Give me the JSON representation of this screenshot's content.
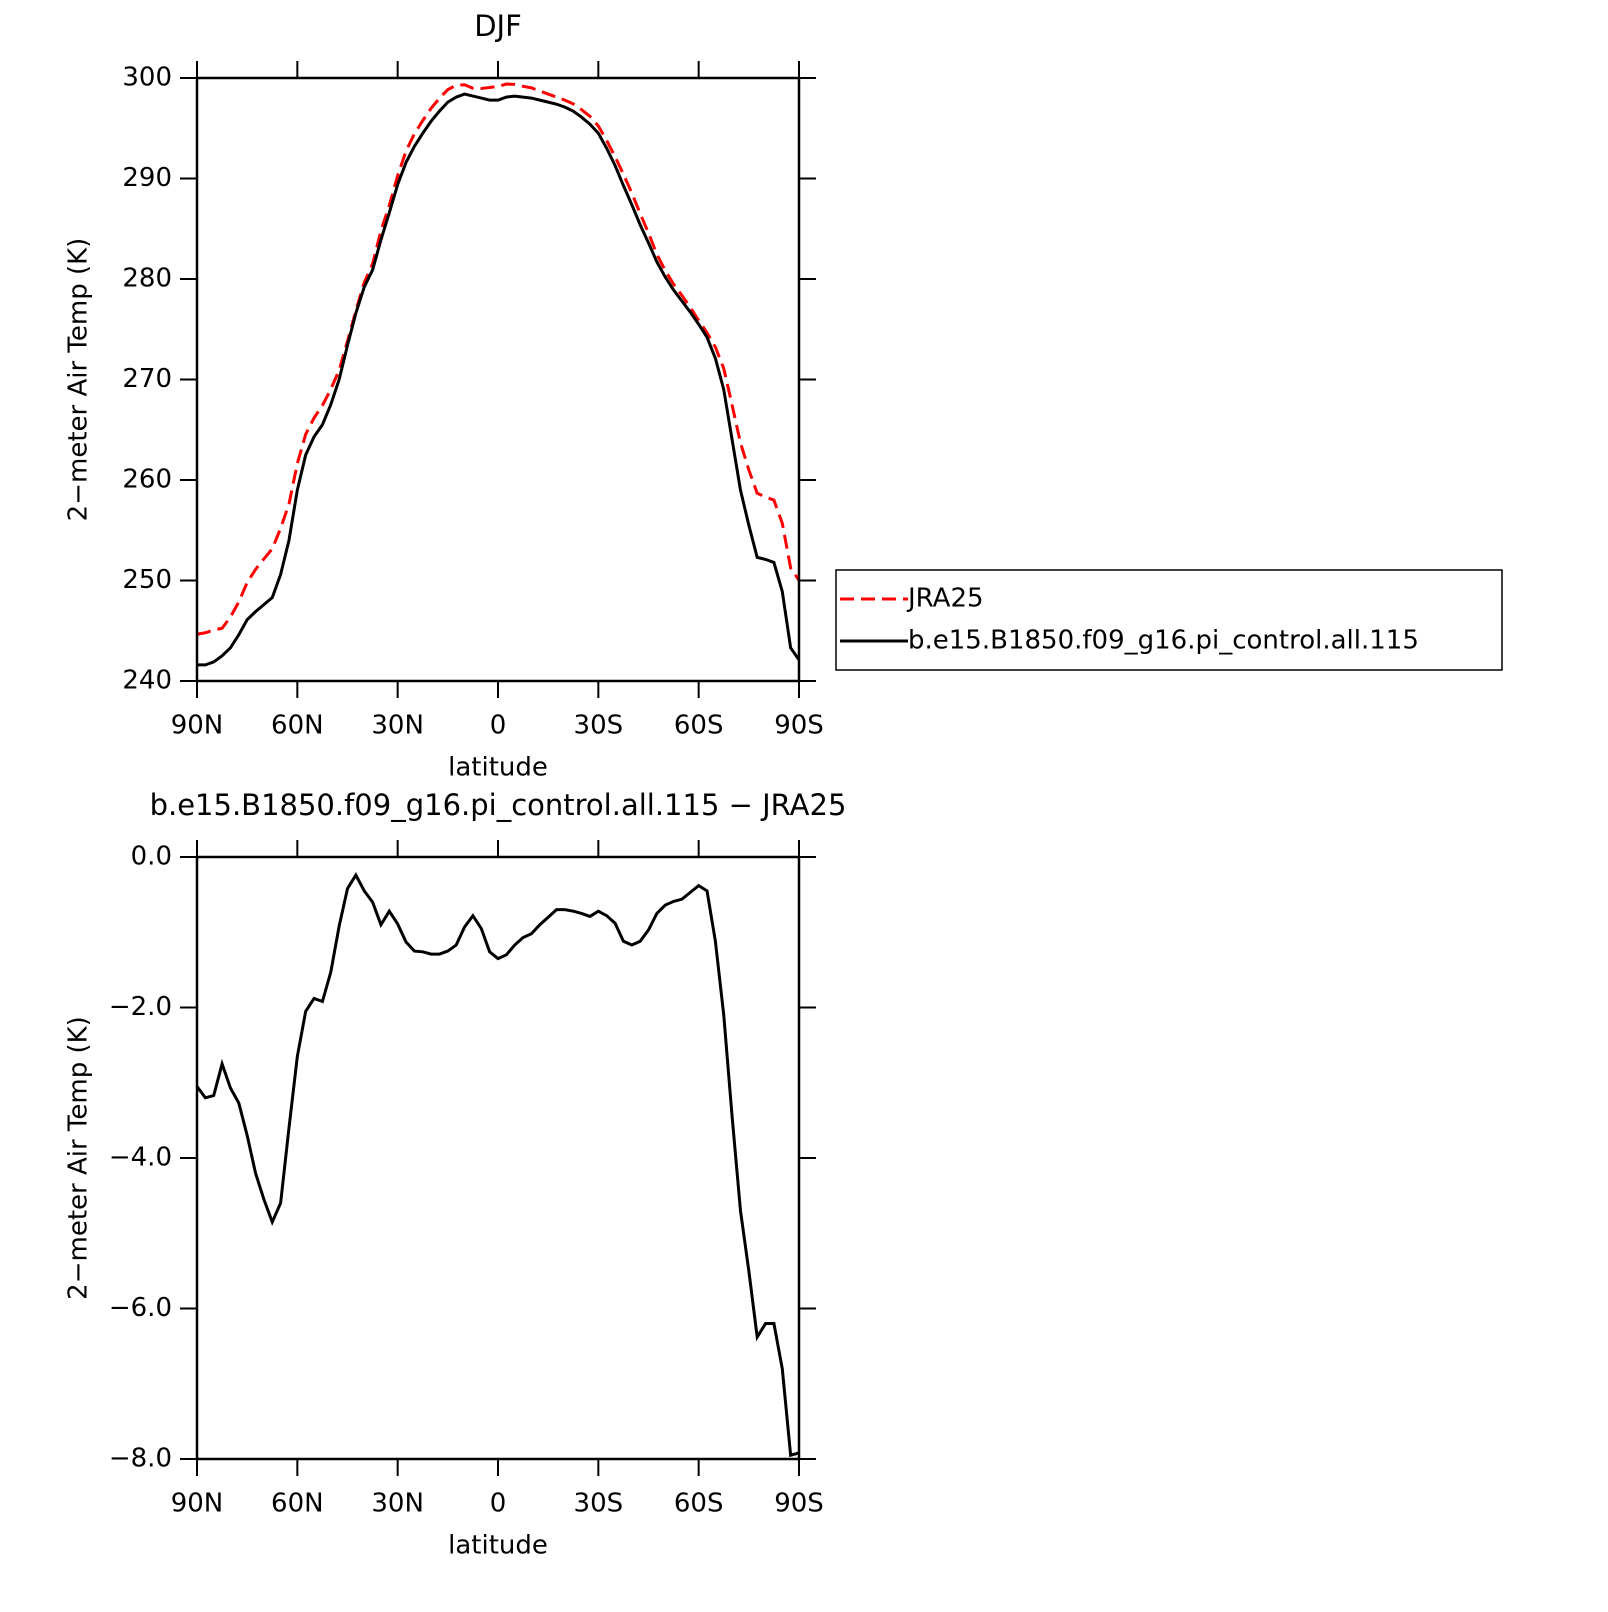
{
  "chart_data": [
    {
      "type": "line",
      "title": "DJF",
      "xlabel": "latitude",
      "ylabel": "2−meter Air Temp (K)",
      "x": [
        90,
        87.5,
        85,
        82.5,
        80,
        77.5,
        75,
        72.5,
        70,
        67.5,
        65,
        62.5,
        60,
        57.5,
        55,
        52.5,
        50,
        47.5,
        45,
        42.5,
        40,
        37.5,
        35,
        32.5,
        30,
        27.5,
        25,
        22.5,
        20,
        17.5,
        15,
        12.5,
        10,
        7.5,
        5,
        2.5,
        0,
        -2.5,
        -5,
        -7.5,
        -10,
        -12.5,
        -15,
        -17.5,
        -20,
        -22.5,
        -25,
        -27.5,
        -30,
        -32.5,
        -35,
        -37.5,
        -40,
        -42.5,
        -45,
        -47.5,
        -50,
        -52.5,
        -55,
        -57.5,
        -60,
        -62.5,
        -65,
        -67.5,
        -70,
        -72.5,
        -75,
        -77.5,
        -80,
        -82.5,
        -85,
        -87.5,
        -90
      ],
      "series": [
        {
          "name": "JRA25",
          "color": "#ff0000",
          "style": "dashed",
          "values": [
            244.65,
            244.8,
            245.07,
            245.25,
            246.37,
            247.87,
            249.8,
            251.1,
            252.15,
            253.15,
            255.2,
            257.6,
            261.65,
            264.55,
            266.18,
            267.42,
            269.03,
            270.92,
            273.82,
            276.84,
            279.65,
            281.5,
            284.8,
            287.32,
            290.29,
            292.73,
            294.45,
            295.76,
            296.99,
            297.99,
            298.85,
            299.27,
            299.33,
            298.98,
            298.95,
            299.06,
            299.15,
            299.4,
            299.37,
            299.17,
            299.02,
            298.7,
            298.4,
            298.1,
            297.8,
            297.42,
            296.85,
            296.19,
            295.22,
            293.78,
            292.18,
            290.42,
            288.57,
            286.52,
            284.57,
            282.45,
            280.84,
            279.49,
            278.36,
            277.17,
            275.88,
            274.65,
            273.22,
            271.1,
            267.45,
            263.7,
            261.0,
            258.68,
            258.3,
            258.0,
            255.7,
            251.25,
            250.02
          ]
        },
        {
          "name": "b.e15.B1850.f09_g16.pi_control.all.115",
          "color": "#000000",
          "style": "solid",
          "values": [
            241.6,
            241.6,
            241.9,
            242.5,
            243.3,
            244.6,
            246.1,
            246.9,
            247.6,
            248.3,
            250.6,
            254.0,
            259.0,
            262.5,
            264.3,
            265.5,
            267.5,
            270.0,
            273.4,
            276.6,
            279.2,
            280.9,
            283.9,
            286.6,
            289.4,
            291.6,
            293.2,
            294.5,
            295.7,
            296.7,
            297.6,
            298.1,
            298.4,
            298.2,
            298.0,
            297.8,
            297.8,
            298.1,
            298.2,
            298.1,
            298.0,
            297.8,
            297.6,
            297.4,
            297.1,
            296.7,
            296.1,
            295.4,
            294.5,
            293.0,
            291.3,
            289.3,
            287.4,
            285.4,
            283.6,
            281.7,
            280.2,
            278.9,
            277.8,
            276.7,
            275.5,
            274.2,
            272.1,
            269.0,
            264.0,
            259.0,
            255.5,
            252.3,
            252.1,
            251.8,
            248.9,
            243.3,
            242.1
          ]
        }
      ],
      "xlim": [
        90,
        -90
      ],
      "xticks": [
        {
          "value": 90,
          "label": "90N"
        },
        {
          "value": 60,
          "label": "60N"
        },
        {
          "value": 30,
          "label": "30N"
        },
        0,
        {
          "value": -30,
          "label": "30S"
        },
        {
          "value": -60,
          "label": "60S"
        },
        {
          "value": -90,
          "label": "90S"
        }
      ],
      "ylim": [
        240,
        300
      ],
      "yticks": [
        240,
        250,
        260,
        270,
        280,
        290,
        300
      ],
      "legend": "outside-right"
    },
    {
      "type": "line",
      "title": "b.e15.B1850.f09_g16.pi_control.all.115 − JRA25",
      "xlabel": "latitude",
      "ylabel": "2−meter Air Temp (K)",
      "x": [
        90,
        87.5,
        85,
        82.5,
        80,
        77.5,
        75,
        72.5,
        70,
        67.5,
        65,
        62.5,
        60,
        57.5,
        55,
        52.5,
        50,
        47.5,
        45,
        42.5,
        40,
        37.5,
        35,
        32.5,
        30,
        27.5,
        25,
        22.5,
        20,
        17.5,
        15,
        12.5,
        10,
        7.5,
        5,
        2.5,
        0,
        -2.5,
        -5,
        -7.5,
        -10,
        -12.5,
        -15,
        -17.5,
        -20,
        -22.5,
        -25,
        -27.5,
        -30,
        -32.5,
        -35,
        -37.5,
        -40,
        -42.5,
        -45,
        -47.5,
        -50,
        -52.5,
        -55,
        -57.5,
        -60,
        -62.5,
        -65,
        -67.5,
        -70,
        -72.5,
        -75,
        -77.5,
        -80,
        -82.5,
        -85,
        -87.5,
        -90
      ],
      "color": "#000000",
      "values": [
        -3.05,
        -3.2,
        -3.17,
        -2.75,
        -3.07,
        -3.27,
        -3.7,
        -4.2,
        -4.55,
        -4.85,
        -4.6,
        -3.6,
        -2.65,
        -2.05,
        -1.88,
        -1.92,
        -1.53,
        -0.92,
        -0.42,
        -0.24,
        -0.45,
        -0.6,
        -0.9,
        -0.72,
        -0.89,
        -1.13,
        -1.25,
        -1.26,
        -1.29,
        -1.29,
        -1.25,
        -1.17,
        -0.93,
        -0.78,
        -0.95,
        -1.26,
        -1.35,
        -1.3,
        -1.17,
        -1.07,
        -1.02,
        -0.9,
        -0.8,
        -0.7,
        -0.7,
        -0.72,
        -0.75,
        -0.79,
        -0.72,
        -0.78,
        -0.88,
        -1.12,
        -1.17,
        -1.12,
        -0.97,
        -0.75,
        -0.64,
        -0.59,
        -0.56,
        -0.47,
        -0.38,
        -0.45,
        -1.12,
        -2.1,
        -3.45,
        -4.7,
        -5.5,
        -6.38,
        -6.2,
        -6.2,
        -6.8,
        -7.95,
        -7.92
      ],
      "xlim": [
        90,
        -90
      ],
      "xticks": [
        {
          "value": 90,
          "label": "90N"
        },
        {
          "value": 60,
          "label": "60N"
        },
        {
          "value": 30,
          "label": "30N"
        },
        0,
        {
          "value": -30,
          "label": "30S"
        },
        {
          "value": -60,
          "label": "60S"
        },
        {
          "value": -90,
          "label": "90S"
        }
      ],
      "ylim": [
        -8,
        0
      ],
      "yticks": [
        {
          "value": -8,
          "label": "−8.0"
        },
        {
          "value": -6,
          "label": "−6.0"
        },
        {
          "value": -4,
          "label": "−4.0"
        },
        {
          "value": -2,
          "label": "−2.0"
        },
        {
          "value": 0,
          "label": "0.0"
        }
      ]
    }
  ]
}
